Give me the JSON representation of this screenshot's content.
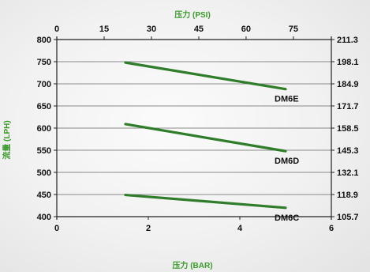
{
  "chart_data": {
    "type": "line",
    "top_axis_title": "压力 (PSI)",
    "bottom_axis_title": "压力 (BAR)",
    "left_axis_title": "流量 (LPH)",
    "x_bottom_ticks": [
      "0",
      "2",
      "4",
      "6"
    ],
    "x_top_ticks": [
      "0",
      "15",
      "30",
      "45",
      "60",
      "75"
    ],
    "y_left_ticks": [
      "400",
      "450",
      "500",
      "550",
      "600",
      "650",
      "700",
      "750",
      "800"
    ],
    "y_right_ticks": [
      "105.7",
      "118.9",
      "132.1",
      "145.3",
      "158.5",
      "171.7",
      "184.9",
      "198.1",
      "211.3"
    ],
    "xlim": [
      0,
      6
    ],
    "ylim": [
      400,
      800
    ],
    "series": [
      {
        "name": "DM6E",
        "x": [
          1.5,
          5.0
        ],
        "y": [
          748,
          688
        ]
      },
      {
        "name": "DM6D",
        "x": [
          1.5,
          5.0
        ],
        "y": [
          609,
          548
        ]
      },
      {
        "name": "DM6C",
        "x": [
          1.5,
          5.0
        ],
        "y": [
          449,
          420
        ]
      }
    ],
    "line_color": "#2f7d2a",
    "grid": true
  }
}
